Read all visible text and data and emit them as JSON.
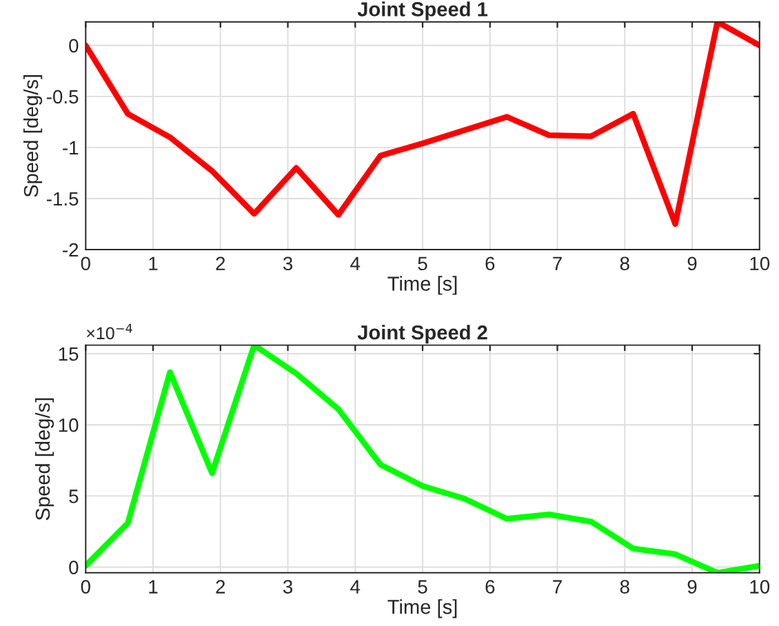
{
  "chart_data": [
    {
      "type": "line",
      "title": "Joint Speed 1",
      "xlabel": "Time [s]",
      "ylabel": "Speed [deg/s]",
      "x": [
        0,
        0.625,
        1.25,
        1.875,
        2.5,
        3.125,
        3.75,
        4.375,
        5,
        5.625,
        6.25,
        6.875,
        7.5,
        8.125,
        8.75,
        9.375,
        10
      ],
      "series": [
        {
          "color": "#ff0000",
          "values": [
            0,
            -0.67,
            -0.9,
            -1.23,
            -1.65,
            -1.2,
            -1.66,
            -1.08,
            -0.96,
            -0.83,
            -0.7,
            -0.88,
            -0.89,
            -0.67,
            -1.75,
            0.23,
            0.0
          ]
        }
      ],
      "xlim": [
        0,
        10
      ],
      "xticks": [
        0,
        1,
        2,
        3,
        4,
        5,
        6,
        7,
        8,
        9,
        10
      ],
      "ylim": [
        -2,
        0.23
      ],
      "yticks": [
        -2,
        -1.5,
        -1,
        -0.5,
        0
      ],
      "grid": true
    },
    {
      "type": "line",
      "title": "Joint Speed 2",
      "xlabel": "Time [s]",
      "ylabel": "Speed [deg/s]",
      "annotations": [
        "×10$^{−4}$"
      ],
      "x": [
        0,
        0.625,
        1.25,
        1.875,
        2.5,
        3.125,
        3.75,
        4.375,
        5,
        5.625,
        6.25,
        6.875,
        7.5,
        8.125,
        8.75,
        9.375,
        10
      ],
      "series": [
        {
          "color": "#00ff00",
          "values": [
            0.1,
            3.1,
            13.7,
            6.6,
            15.6,
            13.6,
            11.1,
            7.2,
            5.7,
            4.8,
            3.4,
            3.7,
            3.2,
            1.3,
            0.9,
            -0.4,
            0.1
          ]
        }
      ],
      "xlim": [
        0,
        10
      ],
      "xticks": [
        0,
        1,
        2,
        3,
        4,
        5,
        6,
        7,
        8,
        9,
        10
      ],
      "ylim": [
        -0.4,
        15.6
      ],
      "yticks": [
        0,
        5,
        10,
        15
      ],
      "grid": true
    }
  ]
}
